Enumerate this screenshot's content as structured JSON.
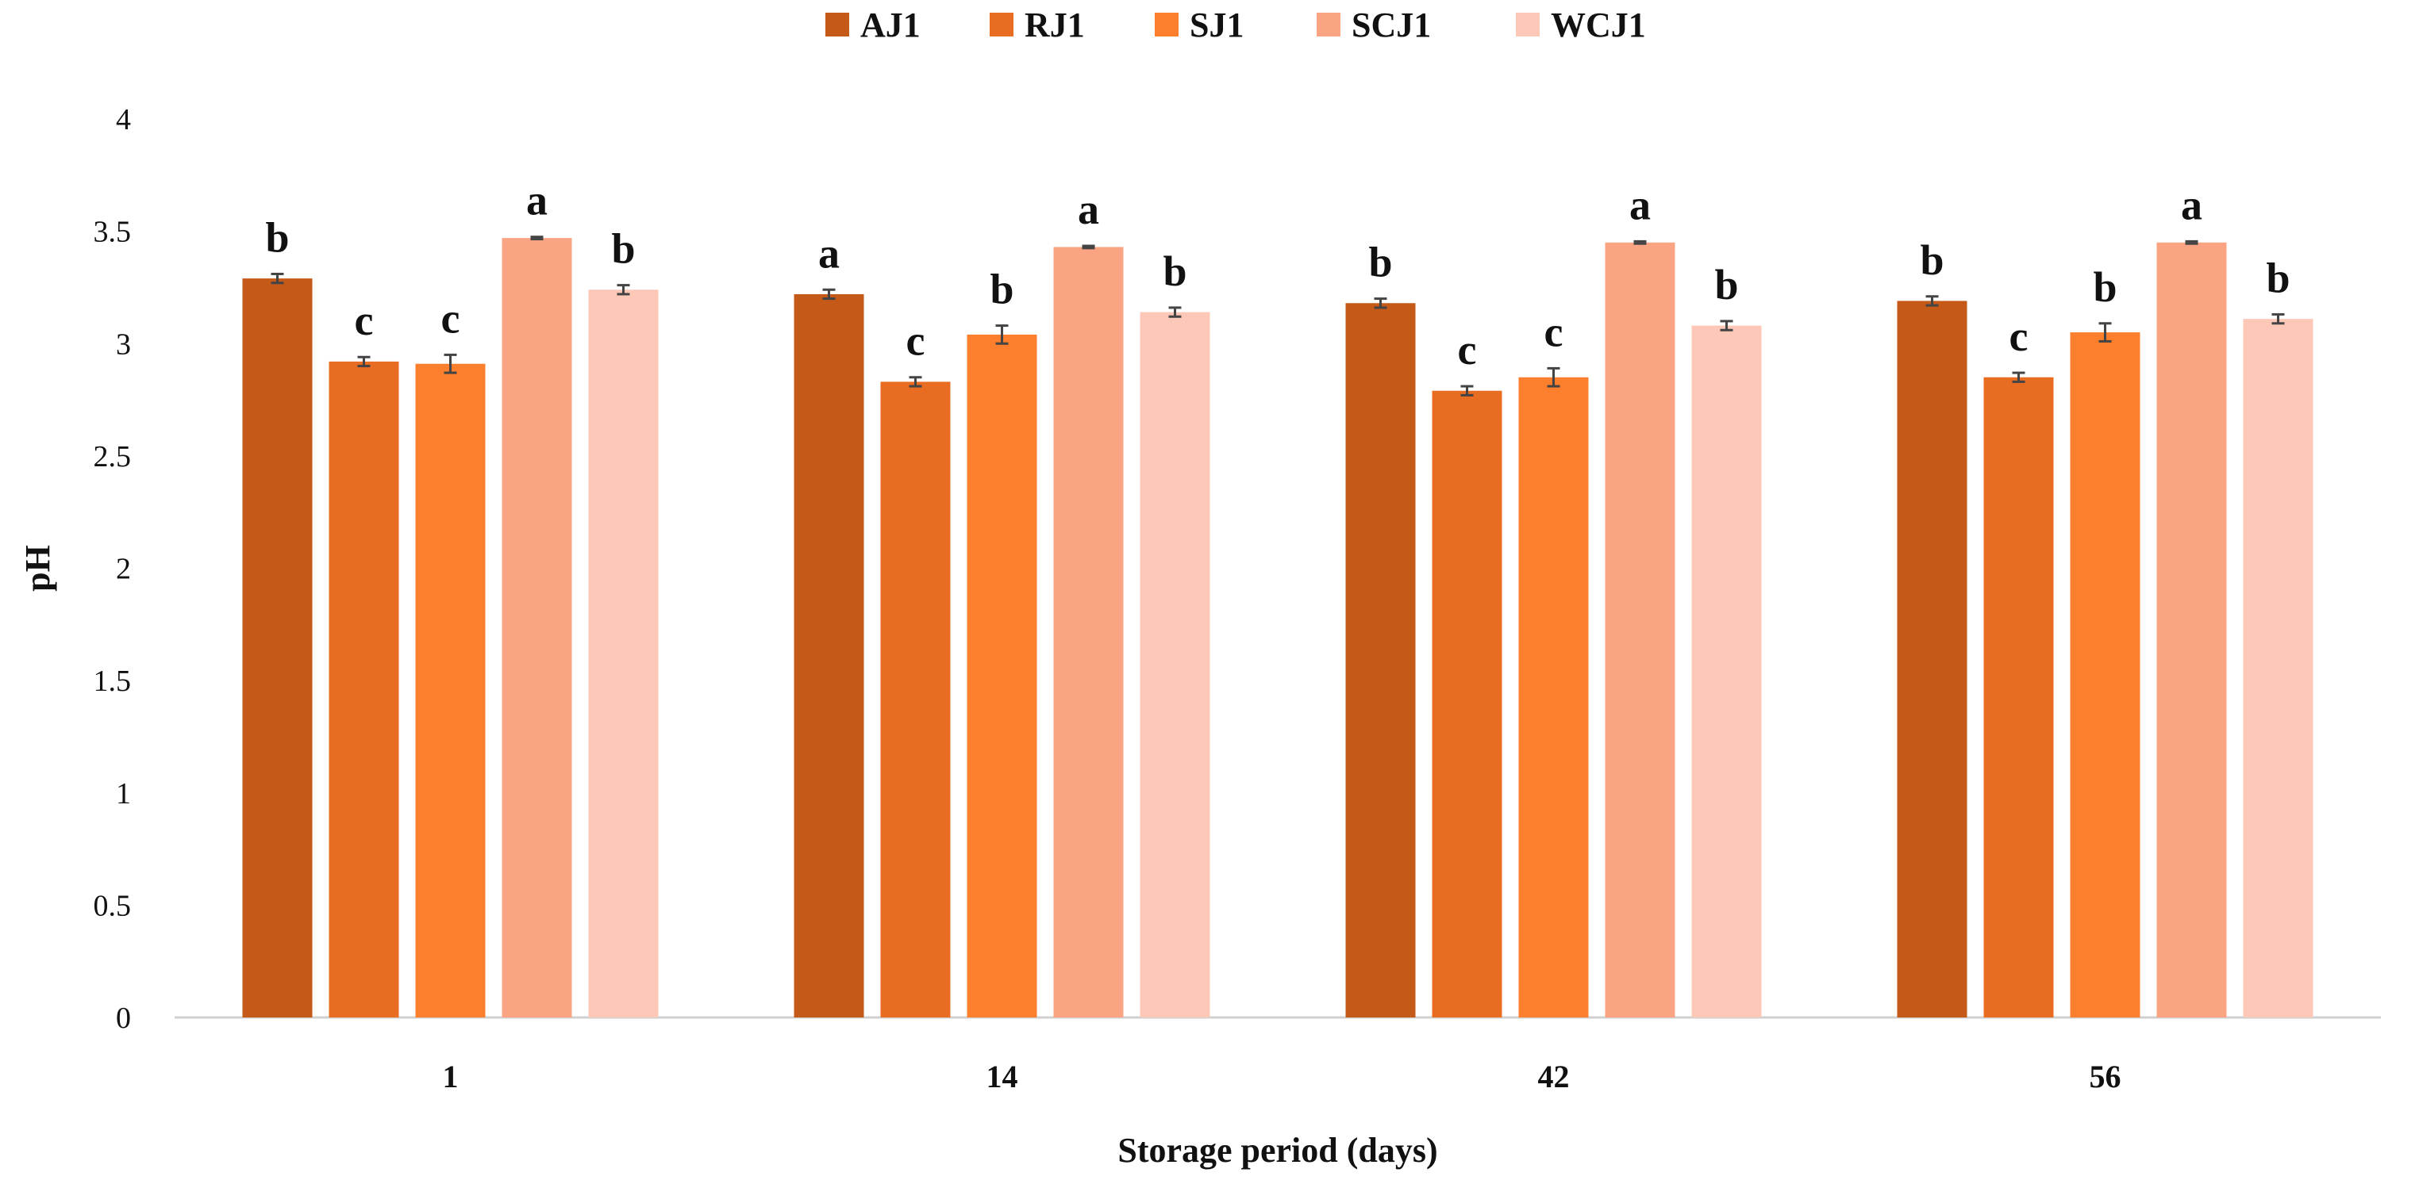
{
  "chart_data": {
    "type": "bar",
    "title": "",
    "xlabel": "Storage period (days)",
    "ylabel": "pH",
    "ylim": [
      0,
      4
    ],
    "yticks": [
      0,
      0.5,
      1,
      1.5,
      2,
      2.5,
      3,
      3.5,
      4
    ],
    "ytick_labels": [
      "0",
      "0.5",
      "1",
      "1.5",
      "2",
      "2.5",
      "3",
      "3.5",
      "4"
    ],
    "grid": false,
    "legend_position": "top-center",
    "categories": [
      "1",
      "14",
      "42",
      "56"
    ],
    "series": [
      {
        "name": "AJ1",
        "color": "#c55a18",
        "values": [
          3.29,
          3.22,
          3.18,
          3.19
        ],
        "errors": [
          0.02,
          0.02,
          0.02,
          0.02
        ],
        "letters": [
          "b",
          "a",
          "b",
          "b"
        ]
      },
      {
        "name": "RJ1",
        "color": "#e86c22",
        "values": [
          2.92,
          2.83,
          2.79,
          2.85
        ],
        "errors": [
          0.02,
          0.02,
          0.02,
          0.02
        ],
        "letters": [
          "c",
          "c",
          "c",
          "c"
        ]
      },
      {
        "name": "SJ1",
        "color": "#fb7f2c",
        "values": [
          2.91,
          3.04,
          2.85,
          3.05
        ],
        "errors": [
          0.04,
          0.04,
          0.04,
          0.04
        ],
        "letters": [
          "c",
          "b",
          "c",
          "b"
        ]
      },
      {
        "name": "SCJ1",
        "color": "#fba483",
        "values": [
          3.47,
          3.43,
          3.45,
          3.45
        ],
        "errors": [
          0.005,
          0.005,
          0.005,
          0.005
        ],
        "letters": [
          "a",
          "a",
          "a",
          "a"
        ]
      },
      {
        "name": "WCJ1",
        "color": "#fdc8b7",
        "values": [
          3.24,
          3.14,
          3.08,
          3.11
        ],
        "errors": [
          0.02,
          0.02,
          0.02,
          0.02
        ],
        "letters": [
          "b",
          "b",
          "b",
          "b"
        ]
      }
    ]
  }
}
